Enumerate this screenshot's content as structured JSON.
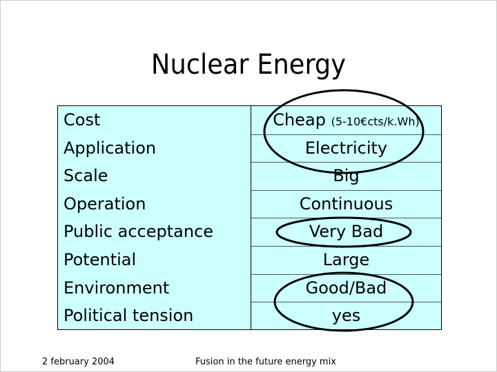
{
  "header": {
    "title": "Nuclear Energy"
  },
  "table": {
    "rows": [
      {
        "label": "Cost",
        "value": "Cheap",
        "note": "(5-10€cts/k.Wh)"
      },
      {
        "label": "Application",
        "value": "Electricity"
      },
      {
        "label": "Scale",
        "value": "Big"
      },
      {
        "label": "Operation",
        "value": "Continuous"
      },
      {
        "label": "Public acceptance",
        "value": "Very Bad"
      },
      {
        "label": "Potential",
        "value": "Large"
      },
      {
        "label": "Environment",
        "value": "Good/Bad"
      },
      {
        "label": "Political tension",
        "value": "yes"
      }
    ]
  },
  "footer": {
    "date": "2 february 2004",
    "text": "Fusion in the future energy mix"
  }
}
